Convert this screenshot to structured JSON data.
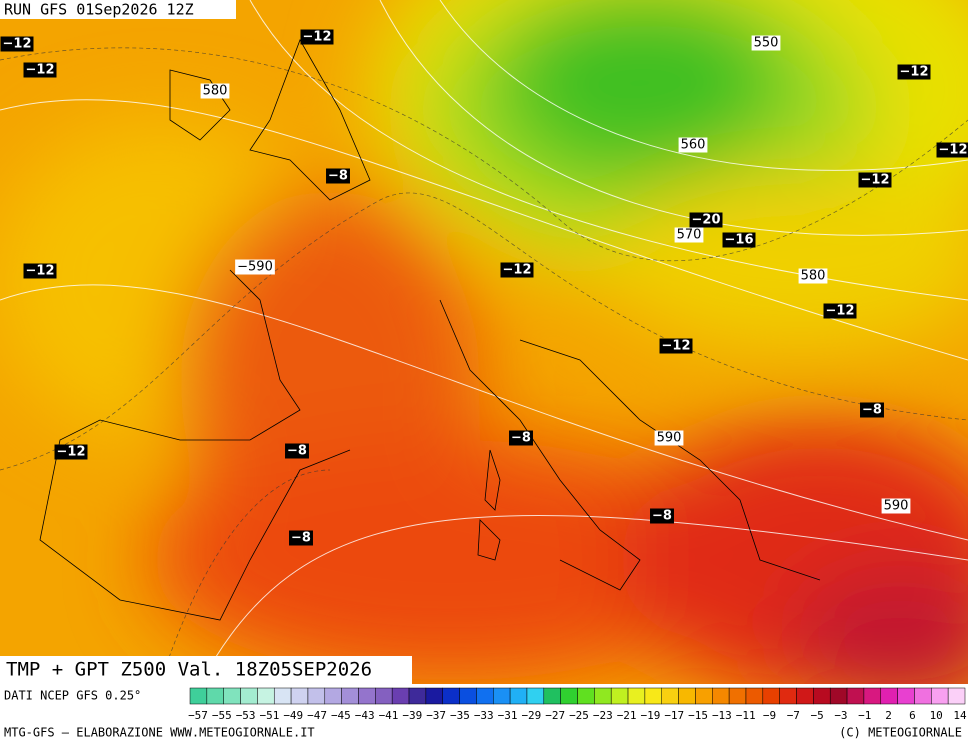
{
  "run_label": "RUN GFS 01Sep2026 12Z",
  "title": "TMP + GPT Z500 Val. 18Z05SEP2026",
  "source": "DATI NCEP GFS 0.25°",
  "credit": "MTG-GFS — ELABORAZIONE WWW.METEOGIORNALE.IT",
  "copyright": "(C) METEOGIORNALE",
  "temperature_labels": [
    "−12",
    "−12",
    "−12",
    "−8",
    "−12",
    "−12",
    "−20",
    "−16",
    "−12",
    "−12",
    "−12",
    "−12",
    "−12",
    "−8",
    "−8",
    "−8",
    "−12",
    "−8",
    "−8"
  ],
  "height_labels": [
    "550",
    "560",
    "570",
    "580",
    "580",
    "590",
    "590",
    "−590"
  ],
  "colorbar": {
    "labels": [
      "−57",
      "−55",
      "−53",
      "−51",
      "−49",
      "−47",
      "−45",
      "−43",
      "−41",
      "−39",
      "−37",
      "−35",
      "−33",
      "−31",
      "−29",
      "−27",
      "−25",
      "−23",
      "−21",
      "−19",
      "−17",
      "−15",
      "−13",
      "−11",
      "−9",
      "−7",
      "−5",
      "−3",
      "−1",
      "2",
      "6",
      "10",
      "14"
    ],
    "colors": [
      "#3fcf9a",
      "#5fd9aa",
      "#80e3bd",
      "#a3ecd0",
      "#c6f3e2",
      "#d8e4f4",
      "#cfd2f0",
      "#c2c0ea",
      "#b3a8e2",
      "#a38fd8",
      "#9474cc",
      "#8460c0",
      "#6a3fb0",
      "#3e2a9a",
      "#1a1aa0",
      "#0b2fc8",
      "#0a4fe0",
      "#1070f0",
      "#1a90f5",
      "#20b0f5",
      "#30d0f0",
      "#20c060",
      "#30d030",
      "#60e020",
      "#90e820",
      "#c0f020",
      "#e8f020",
      "#f8e818",
      "#f8d010",
      "#f8b800",
      "#f8a000",
      "#f58800",
      "#f07000",
      "#ec5a00",
      "#e84000",
      "#e02a10",
      "#d01818",
      "#b80a20",
      "#a00828",
      "#c01050",
      "#d81880",
      "#e020b0",
      "#e840d0",
      "#f070e0",
      "#f8a0f0",
      "#fbd0f8"
    ]
  }
}
